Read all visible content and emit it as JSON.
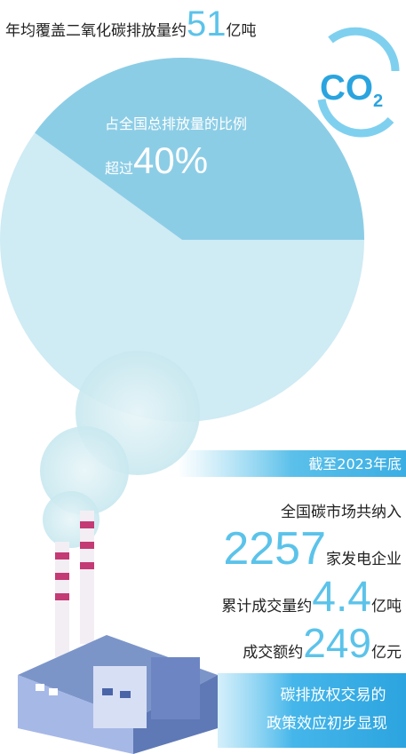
{
  "header": {
    "prefix": "年均覆盖二氧化碳排放量约",
    "number": 51,
    "unit": "亿吨"
  },
  "co2": {
    "symbol": "CO",
    "subscript": "2"
  },
  "pie": {
    "caption": "占全国总排放量的比例",
    "prefix": "超过",
    "value": 40,
    "unit": "%"
  },
  "banner": "截至2023年底",
  "stats": [
    {
      "text": "全国碳市场共纳入"
    },
    {
      "number": 2257,
      "unit": "家发电企业"
    },
    {
      "prefix": "累计成交量约",
      "number": 4.4,
      "unit": "亿吨"
    },
    {
      "prefix": "成交额约",
      "number": 249,
      "unit": "亿元"
    }
  ],
  "footer": [
    "碳排放权交易的",
    "政策效应初步显现"
  ]
}
